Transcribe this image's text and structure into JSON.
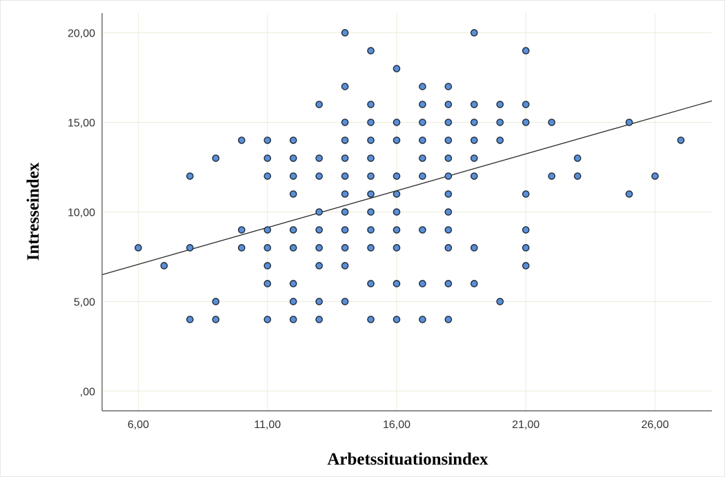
{
  "chart_data": {
    "type": "scatter",
    "title": "",
    "xlabel": "Arbetssituationsindex",
    "ylabel": "Intresseindex",
    "xlim": [
      4.6,
      28.2
    ],
    "ylim": [
      -1.1,
      21.1
    ],
    "x_ticks": [
      6,
      11,
      16,
      21,
      26
    ],
    "x_tick_labels": [
      "6,00",
      "11,00",
      "16,00",
      "21,00",
      "26,00"
    ],
    "y_ticks": [
      0,
      5,
      10,
      15,
      20
    ],
    "y_tick_labels": [
      ",00",
      "5,00",
      "10,00",
      "15,00",
      "20,00"
    ],
    "grid": true,
    "legend": "none",
    "colors": {
      "point_fill": "#5b8fd6",
      "point_edge": "#1d2b3d",
      "fit_line": "#2a2a2a",
      "grid": "#ecebd8"
    },
    "fit_line": {
      "x": [
        4.6,
        28.2
      ],
      "y": [
        6.5,
        16.2
      ]
    },
    "points": [
      [
        6,
        8
      ],
      [
        7,
        7
      ],
      [
        8,
        12
      ],
      [
        8,
        8
      ],
      [
        8,
        4
      ],
      [
        9,
        13
      ],
      [
        9,
        5
      ],
      [
        9,
        4
      ],
      [
        10,
        14
      ],
      [
        10,
        9
      ],
      [
        10,
        8
      ],
      [
        11,
        14
      ],
      [
        11,
        13
      ],
      [
        11,
        12
      ],
      [
        11,
        9
      ],
      [
        11,
        8
      ],
      [
        11,
        7
      ],
      [
        11,
        6
      ],
      [
        11,
        4
      ],
      [
        12,
        14
      ],
      [
        12,
        13
      ],
      [
        12,
        12
      ],
      [
        12,
        11
      ],
      [
        12,
        9
      ],
      [
        12,
        8
      ],
      [
        12,
        6
      ],
      [
        12,
        5
      ],
      [
        12,
        4
      ],
      [
        13,
        16
      ],
      [
        13,
        13
      ],
      [
        13,
        12
      ],
      [
        13,
        10
      ],
      [
        13,
        9
      ],
      [
        13,
        8
      ],
      [
        13,
        7
      ],
      [
        13,
        5
      ],
      [
        13,
        4
      ],
      [
        14,
        20
      ],
      [
        14,
        17
      ],
      [
        14,
        15
      ],
      [
        14,
        14
      ],
      [
        14,
        13
      ],
      [
        14,
        12
      ],
      [
        14,
        11
      ],
      [
        14,
        10
      ],
      [
        14,
        9
      ],
      [
        14,
        8
      ],
      [
        14,
        7
      ],
      [
        14,
        5
      ],
      [
        15,
        19
      ],
      [
        15,
        16
      ],
      [
        15,
        15
      ],
      [
        15,
        14
      ],
      [
        15,
        13
      ],
      [
        15,
        12
      ],
      [
        15,
        11
      ],
      [
        15,
        10
      ],
      [
        15,
        9
      ],
      [
        15,
        8
      ],
      [
        15,
        6
      ],
      [
        15,
        4
      ],
      [
        16,
        18
      ],
      [
        16,
        15
      ],
      [
        16,
        14
      ],
      [
        16,
        12
      ],
      [
        16,
        11
      ],
      [
        16,
        10
      ],
      [
        16,
        9
      ],
      [
        16,
        8
      ],
      [
        16,
        6
      ],
      [
        16,
        4
      ],
      [
        17,
        17
      ],
      [
        17,
        16
      ],
      [
        17,
        15
      ],
      [
        17,
        14
      ],
      [
        17,
        13
      ],
      [
        17,
        12
      ],
      [
        17,
        9
      ],
      [
        17,
        6
      ],
      [
        17,
        4
      ],
      [
        18,
        17
      ],
      [
        18,
        16
      ],
      [
        18,
        15
      ],
      [
        18,
        14
      ],
      [
        18,
        13
      ],
      [
        18,
        12
      ],
      [
        18,
        11
      ],
      [
        18,
        10
      ],
      [
        18,
        9
      ],
      [
        18,
        8
      ],
      [
        18,
        6
      ],
      [
        18,
        4
      ],
      [
        19,
        20
      ],
      [
        19,
        16
      ],
      [
        19,
        15
      ],
      [
        19,
        14
      ],
      [
        19,
        13
      ],
      [
        19,
        12
      ],
      [
        19,
        8
      ],
      [
        19,
        6
      ],
      [
        20,
        16
      ],
      [
        20,
        15
      ],
      [
        20,
        14
      ],
      [
        20,
        5
      ],
      [
        21,
        19
      ],
      [
        21,
        16
      ],
      [
        21,
        15
      ],
      [
        21,
        11
      ],
      [
        21,
        9
      ],
      [
        21,
        8
      ],
      [
        21,
        7
      ],
      [
        22,
        15
      ],
      [
        22,
        12
      ],
      [
        23,
        13
      ],
      [
        23,
        12
      ],
      [
        25,
        15
      ],
      [
        25,
        11
      ],
      [
        26,
        12
      ],
      [
        27,
        14
      ]
    ]
  }
}
